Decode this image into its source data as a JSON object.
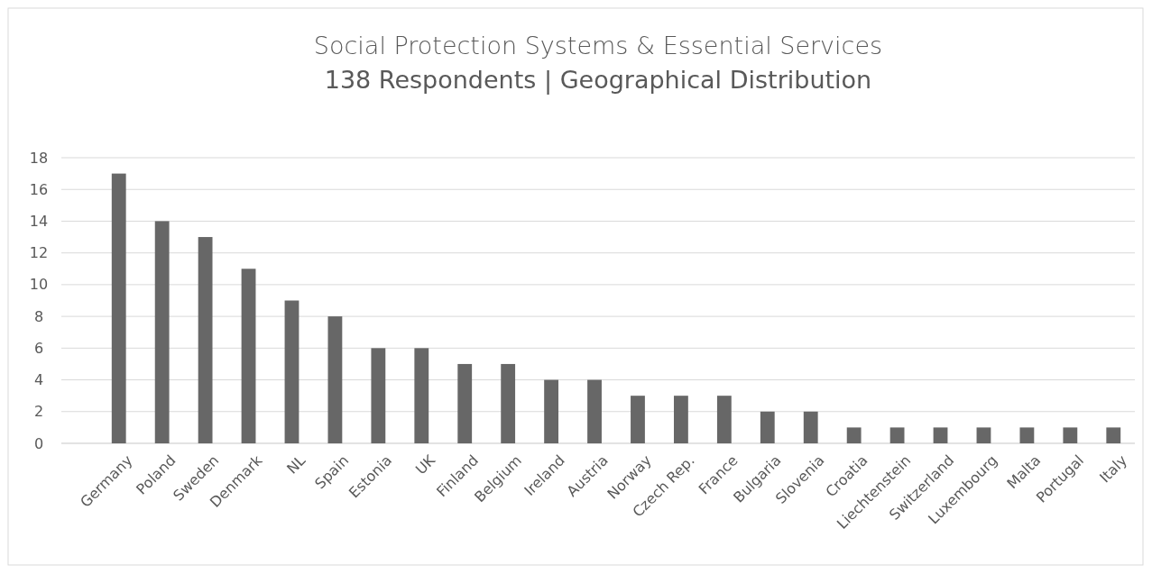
{
  "chart_data": {
    "type": "bar",
    "title": "Social Protection Systems & Essential Services",
    "subtitle": "138 Respondents | Geographical Distribution",
    "categories": [
      "Germany",
      "Poland",
      "Sweden",
      "Denmark",
      "NL",
      "Spain",
      "Estonia",
      "UK",
      "Finland",
      "Belgium",
      "Ireland",
      "Austria",
      "Norway",
      "Czech Rep.",
      "France",
      "Bulgaria",
      "Slovenia",
      "Croatia",
      "Liechtenstein",
      "Switzerland",
      "Luxembourg",
      "Malta",
      "Portugal",
      "Italy"
    ],
    "values": [
      17,
      14,
      13,
      11,
      9,
      8,
      6,
      6,
      5,
      5,
      4,
      4,
      3,
      3,
      3,
      2,
      2,
      1,
      1,
      1,
      1,
      1,
      1,
      1
    ],
    "color": "#676767",
    "ylim": [
      0,
      18
    ],
    "yticks": [
      0,
      2,
      4,
      6,
      8,
      10,
      12,
      14,
      16,
      18
    ],
    "grid": "y"
  }
}
